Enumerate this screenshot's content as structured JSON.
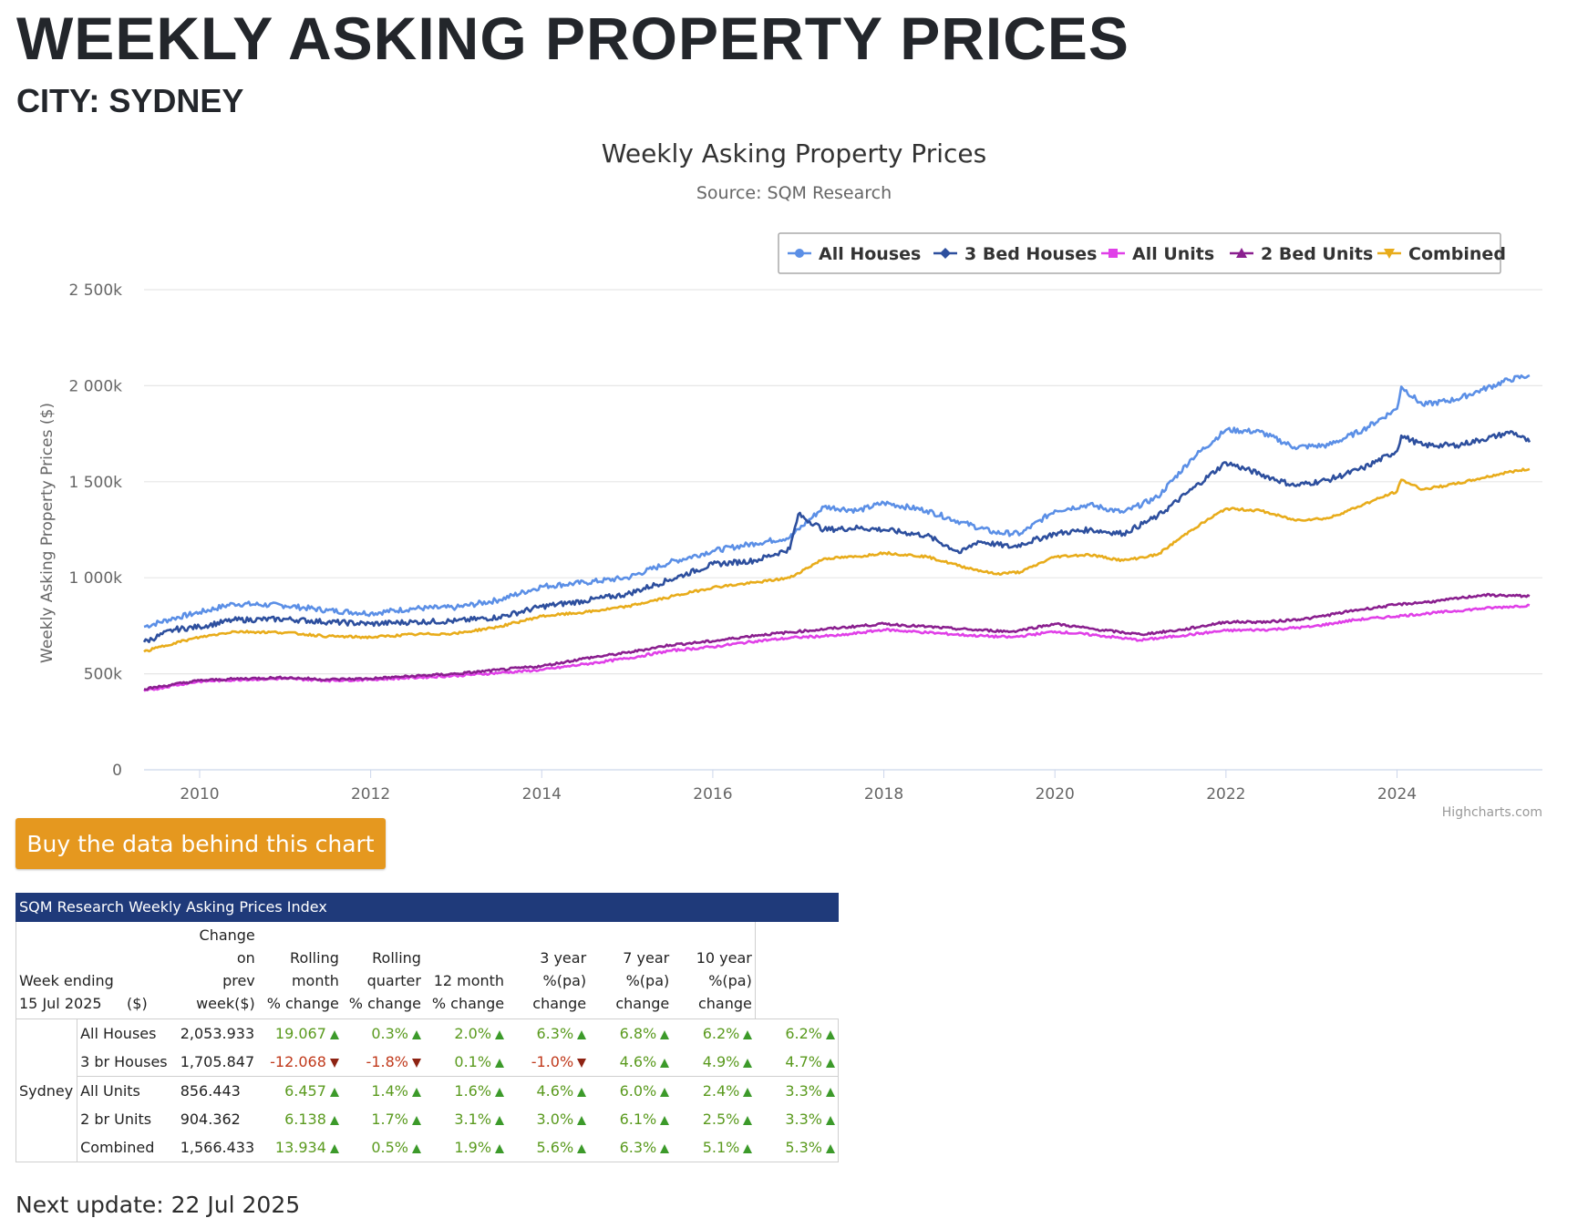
{
  "header": {
    "title": "WEEKLY ASKING PROPERTY PRICES",
    "subtitle": "CITY: SYDNEY"
  },
  "chart_data": {
    "type": "line",
    "title": "Weekly Asking Property Prices",
    "subtitle": "Source: SQM Research",
    "xlabel": "",
    "ylabel": "Weekly Asking Property Prices ($)",
    "credit": "Highcharts.com",
    "legend_position": "top-right",
    "x_range": [
      2009.35,
      2025.7
    ],
    "ylim": [
      0,
      2500000
    ],
    "y_ticks": [
      0,
      500000,
      1000000,
      1500000,
      2000000,
      2500000
    ],
    "y_tick_labels": [
      "0",
      "500k",
      "1 000k",
      "1 500k",
      "2 000k",
      "2 500k"
    ],
    "x_ticks": [
      2010,
      2012,
      2014,
      2016,
      2018,
      2020,
      2022,
      2024
    ],
    "x_tick_labels": [
      "2010",
      "2012",
      "2014",
      "2016",
      "2018",
      "2020",
      "2022",
      "2024"
    ],
    "series": [
      {
        "name": "All Houses",
        "color": "#5b8fe6",
        "marker": "circle",
        "points": [
          [
            2009.35,
            745000
          ],
          [
            2009.7,
            790000
          ],
          [
            2010,
            820000
          ],
          [
            2010.4,
            865000
          ],
          [
            2011,
            855000
          ],
          [
            2011.5,
            830000
          ],
          [
            2012,
            815000
          ],
          [
            2012.5,
            840000
          ],
          [
            2013,
            845000
          ],
          [
            2013.5,
            885000
          ],
          [
            2014,
            955000
          ],
          [
            2014.5,
            975000
          ],
          [
            2015,
            1000000
          ],
          [
            2015.5,
            1080000
          ],
          [
            2016,
            1140000
          ],
          [
            2016.5,
            1180000
          ],
          [
            2016.9,
            1210000
          ],
          [
            2017.3,
            1370000
          ],
          [
            2017.7,
            1350000
          ],
          [
            2018,
            1390000
          ],
          [
            2018.5,
            1350000
          ],
          [
            2018.9,
            1290000
          ],
          [
            2019.3,
            1235000
          ],
          [
            2019.6,
            1230000
          ],
          [
            2020,
            1350000
          ],
          [
            2020.4,
            1380000
          ],
          [
            2020.8,
            1340000
          ],
          [
            2021.2,
            1420000
          ],
          [
            2021.6,
            1620000
          ],
          [
            2022,
            1770000
          ],
          [
            2022.4,
            1760000
          ],
          [
            2022.8,
            1680000
          ],
          [
            2023.2,
            1690000
          ],
          [
            2023.6,
            1770000
          ],
          [
            2024,
            1880000
          ],
          [
            2024.05,
            1995000
          ],
          [
            2024.3,
            1900000
          ],
          [
            2024.7,
            1930000
          ],
          [
            2025,
            1980000
          ],
          [
            2025.3,
            2030000
          ],
          [
            2025.55,
            2053933
          ]
        ]
      },
      {
        "name": "3 Bed Houses",
        "color": "#2d4f9e",
        "marker": "diamond",
        "points": [
          [
            2009.35,
            665000
          ],
          [
            2009.7,
            730000
          ],
          [
            2010,
            745000
          ],
          [
            2010.4,
            780000
          ],
          [
            2011,
            785000
          ],
          [
            2011.5,
            770000
          ],
          [
            2012,
            760000
          ],
          [
            2012.5,
            770000
          ],
          [
            2013,
            775000
          ],
          [
            2013.5,
            795000
          ],
          [
            2014,
            850000
          ],
          [
            2014.5,
            880000
          ],
          [
            2015,
            915000
          ],
          [
            2015.5,
            990000
          ],
          [
            2016,
            1070000
          ],
          [
            2016.5,
            1090000
          ],
          [
            2016.9,
            1150000
          ],
          [
            2017,
            1330000
          ],
          [
            2017.3,
            1250000
          ],
          [
            2017.7,
            1260000
          ],
          [
            2018,
            1250000
          ],
          [
            2018.5,
            1220000
          ],
          [
            2018.9,
            1130000
          ],
          [
            2019.1,
            1190000
          ],
          [
            2019.5,
            1160000
          ],
          [
            2020,
            1230000
          ],
          [
            2020.4,
            1250000
          ],
          [
            2020.8,
            1230000
          ],
          [
            2021.2,
            1320000
          ],
          [
            2021.6,
            1460000
          ],
          [
            2022,
            1600000
          ],
          [
            2022.4,
            1540000
          ],
          [
            2022.8,
            1480000
          ],
          [
            2023.2,
            1510000
          ],
          [
            2023.6,
            1570000
          ],
          [
            2024,
            1660000
          ],
          [
            2024.05,
            1740000
          ],
          [
            2024.3,
            1690000
          ],
          [
            2024.7,
            1690000
          ],
          [
            2025,
            1720000
          ],
          [
            2025.35,
            1760000
          ],
          [
            2025.55,
            1705847
          ]
        ]
      },
      {
        "name": "All Units",
        "color": "#e040e8",
        "marker": "square",
        "points": [
          [
            2009.35,
            410000
          ],
          [
            2009.7,
            440000
          ],
          [
            2010,
            460000
          ],
          [
            2010.5,
            470000
          ],
          [
            2011,
            475000
          ],
          [
            2011.5,
            465000
          ],
          [
            2012,
            470000
          ],
          [
            2012.5,
            480000
          ],
          [
            2013,
            490000
          ],
          [
            2013.5,
            505000
          ],
          [
            2014,
            520000
          ],
          [
            2014.5,
            550000
          ],
          [
            2015,
            580000
          ],
          [
            2015.5,
            620000
          ],
          [
            2016,
            640000
          ],
          [
            2016.5,
            670000
          ],
          [
            2017,
            690000
          ],
          [
            2017.5,
            700000
          ],
          [
            2018,
            730000
          ],
          [
            2018.5,
            715000
          ],
          [
            2019,
            700000
          ],
          [
            2019.5,
            690000
          ],
          [
            2020,
            720000
          ],
          [
            2020.5,
            700000
          ],
          [
            2021,
            675000
          ],
          [
            2021.5,
            700000
          ],
          [
            2022,
            725000
          ],
          [
            2022.5,
            730000
          ],
          [
            2023,
            745000
          ],
          [
            2023.5,
            780000
          ],
          [
            2024,
            800000
          ],
          [
            2024.5,
            820000
          ],
          [
            2025,
            840000
          ],
          [
            2025.55,
            856443
          ]
        ]
      },
      {
        "name": "2 Bed Units",
        "color": "#8a1f8f",
        "marker": "triangle",
        "points": [
          [
            2009.35,
            420000
          ],
          [
            2009.7,
            445000
          ],
          [
            2010,
            465000
          ],
          [
            2010.5,
            475000
          ],
          [
            2011,
            480000
          ],
          [
            2011.5,
            470000
          ],
          [
            2012,
            475000
          ],
          [
            2012.5,
            488000
          ],
          [
            2013,
            500000
          ],
          [
            2013.5,
            520000
          ],
          [
            2014,
            540000
          ],
          [
            2014.5,
            580000
          ],
          [
            2015,
            610000
          ],
          [
            2015.5,
            650000
          ],
          [
            2016,
            670000
          ],
          [
            2016.5,
            700000
          ],
          [
            2017,
            720000
          ],
          [
            2017.5,
            740000
          ],
          [
            2018,
            760000
          ],
          [
            2018.5,
            745000
          ],
          [
            2019,
            730000
          ],
          [
            2019.5,
            720000
          ],
          [
            2020,
            760000
          ],
          [
            2020.5,
            730000
          ],
          [
            2021,
            705000
          ],
          [
            2021.5,
            730000
          ],
          [
            2022,
            770000
          ],
          [
            2022.5,
            770000
          ],
          [
            2023,
            790000
          ],
          [
            2023.5,
            830000
          ],
          [
            2024,
            860000
          ],
          [
            2024.5,
            880000
          ],
          [
            2025,
            910000
          ],
          [
            2025.55,
            904362
          ]
        ]
      },
      {
        "name": "Combined",
        "color": "#e8ac1b",
        "marker": "triangle-down",
        "points": [
          [
            2009.35,
            615000
          ],
          [
            2009.7,
            660000
          ],
          [
            2010,
            690000
          ],
          [
            2010.4,
            720000
          ],
          [
            2011,
            715000
          ],
          [
            2011.5,
            695000
          ],
          [
            2012,
            690000
          ],
          [
            2012.5,
            705000
          ],
          [
            2013,
            710000
          ],
          [
            2013.5,
            745000
          ],
          [
            2014,
            800000
          ],
          [
            2014.5,
            820000
          ],
          [
            2015,
            850000
          ],
          [
            2015.5,
            900000
          ],
          [
            2016,
            950000
          ],
          [
            2016.5,
            975000
          ],
          [
            2016.9,
            1000000
          ],
          [
            2017.3,
            1100000
          ],
          [
            2017.7,
            1110000
          ],
          [
            2018,
            1130000
          ],
          [
            2018.5,
            1110000
          ],
          [
            2018.9,
            1060000
          ],
          [
            2019.3,
            1020000
          ],
          [
            2019.6,
            1030000
          ],
          [
            2020,
            1110000
          ],
          [
            2020.4,
            1120000
          ],
          [
            2020.8,
            1090000
          ],
          [
            2021.2,
            1120000
          ],
          [
            2021.6,
            1250000
          ],
          [
            2022,
            1360000
          ],
          [
            2022.4,
            1350000
          ],
          [
            2022.8,
            1300000
          ],
          [
            2023.2,
            1310000
          ],
          [
            2023.6,
            1380000
          ],
          [
            2024,
            1450000
          ],
          [
            2024.05,
            1510000
          ],
          [
            2024.3,
            1460000
          ],
          [
            2024.7,
            1490000
          ],
          [
            2025,
            1520000
          ],
          [
            2025.3,
            1550000
          ],
          [
            2025.55,
            1566433
          ]
        ]
      }
    ]
  },
  "buy_button": {
    "label": "Buy the data behind this chart"
  },
  "table": {
    "caption": "SQM Research Weekly Asking Prices Index",
    "week_label": "Week ending",
    "week_date": "15 Jul 2025",
    "headers": {
      "price": "($)",
      "change_l1": "Change",
      "change_l2": "on",
      "change_l3": "prev",
      "change_l4": "week($)",
      "month_l1": "Rolling",
      "month_l2": "month",
      "month_l3": "% change",
      "quarter_l1": "Rolling",
      "quarter_l2": "quarter",
      "quarter_l3": "% change",
      "year_l1": "12 month",
      "year_l2": "% change",
      "y3_l1": "3 year",
      "y3_l2": "%(pa)",
      "y3_l3": "change",
      "y7_l1": "7 year",
      "y7_l2": "%(pa)",
      "y7_l3": "change",
      "y10_l1": "10 year",
      "y10_l2": "%(pa)",
      "y10_l3": "change"
    },
    "city": "Sydney",
    "rows": [
      {
        "metric": "All Houses",
        "price": "2,053.933",
        "change": "19.067",
        "month": "0.3%",
        "quarter": "2.0%",
        "year": "6.3%",
        "y3": "6.8%",
        "y7": "6.2%",
        "y10": "6.2%"
      },
      {
        "metric": "3 br Houses",
        "price": "1,705.847",
        "change": "-12.068",
        "month": "-1.8%",
        "quarter": "0.1%",
        "year": "-1.0%",
        "y3": "4.6%",
        "y7": "4.9%",
        "y10": "4.7%"
      },
      {
        "metric": "All Units",
        "price": "856.443",
        "change": "6.457",
        "month": "1.4%",
        "quarter": "1.6%",
        "year": "4.6%",
        "y3": "6.0%",
        "y7": "2.4%",
        "y10": "3.3%"
      },
      {
        "metric": "2 br Units",
        "price": "904.362",
        "change": "6.138",
        "month": "1.7%",
        "quarter": "3.1%",
        "year": "3.0%",
        "y3": "6.1%",
        "y7": "2.5%",
        "y10": "3.3%"
      },
      {
        "metric": "Combined",
        "price": "1,566.433",
        "change": "13.934",
        "month": "0.5%",
        "quarter": "1.9%",
        "year": "5.6%",
        "y3": "6.3%",
        "y7": "5.1%",
        "y10": "5.3%"
      }
    ]
  },
  "footer": {
    "next_update": "Next update: 22 Jul 2025"
  }
}
